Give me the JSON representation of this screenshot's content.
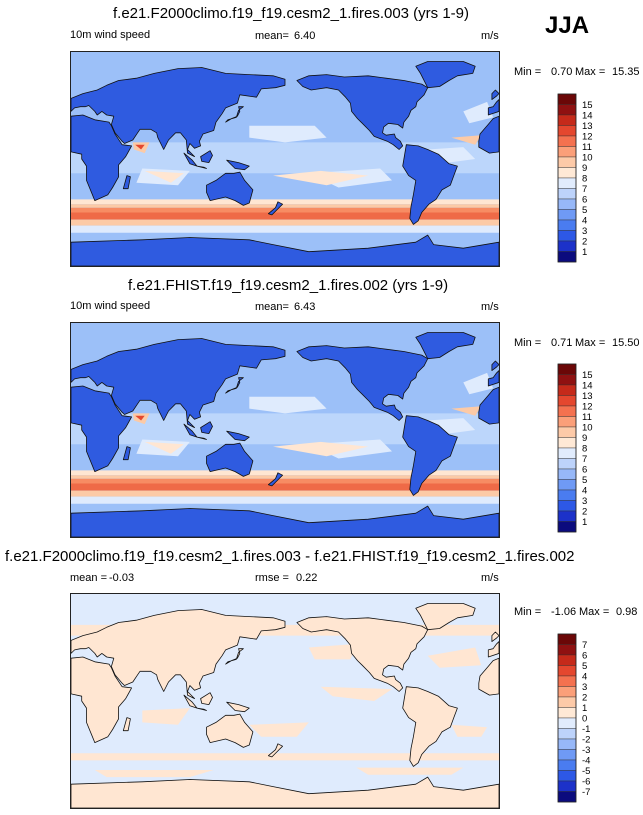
{
  "season": "JJA",
  "units": "m/s",
  "panels": [
    {
      "title": "f.e21.F2000climo.f19_f19.cesm2_1.fires.003 (yrs 1-9)",
      "variable_label": "10m wind speed",
      "stat_label": "mean=",
      "stat_value": "6.40",
      "units": "m/s",
      "min_label": "Min =",
      "min_value": "0.70",
      "max_label": "Max =",
      "max_value": "15.35"
    },
    {
      "title": "f.e21.FHIST.f19_f19.cesm2_1.fires.002 (yrs 1-9)",
      "variable_label": "10m wind speed",
      "stat_label": "mean=",
      "stat_value": "6.43",
      "units": "m/s",
      "min_label": "Min =",
      "min_value": "0.71",
      "max_label": "Max =",
      "max_value": "15.50"
    },
    {
      "title": "f.e21.F2000climo.f19_f19.cesm2_1.fires.003 - f.e21.FHIST.f19_f19.cesm2_1.fires.002",
      "mean_label": "mean =",
      "mean_value": "-0.03",
      "rmse_label": "rmse =",
      "rmse_value": "0.22",
      "units": "m/s",
      "min_label": "Min =",
      "min_value": "-1.06",
      "max_label": "Max =",
      "max_value": "0.98"
    }
  ],
  "chart_data": [
    {
      "type": "heatmap",
      "title": "f.e21.F2000climo.f19_f19.cesm2_1.fires.003 (yrs 1-9)",
      "variable": "10m wind speed",
      "units": "m/s",
      "mean": 6.4,
      "min": 0.7,
      "max": 15.35,
      "colorbar_levels": [
        1,
        2,
        3,
        4,
        5,
        6,
        7,
        8,
        9,
        10,
        11,
        12,
        13,
        14,
        15
      ],
      "colorbar_colors": [
        "#0b0b7e",
        "#1c31c9",
        "#2d58e6",
        "#4a7cf0",
        "#6f9af5",
        "#97b8f8",
        "#bdd3fb",
        "#e1ecfd",
        "#ffe9d6",
        "#fdcaa8",
        "#fb9f79",
        "#f4714f",
        "#e4472e",
        "#c52a1a",
        "#8f1111",
        "#6b0707"
      ]
    },
    {
      "type": "heatmap",
      "title": "f.e21.FHIST.f19_f19.cesm2_1.fires.002 (yrs 1-9)",
      "variable": "10m wind speed",
      "units": "m/s",
      "mean": 6.43,
      "min": 0.71,
      "max": 15.5,
      "colorbar_levels": [
        1,
        2,
        3,
        4,
        5,
        6,
        7,
        8,
        9,
        10,
        11,
        12,
        13,
        14,
        15
      ],
      "colorbar_colors": [
        "#0b0b7e",
        "#1c31c9",
        "#2d58e6",
        "#4a7cf0",
        "#6f9af5",
        "#97b8f8",
        "#bdd3fb",
        "#e1ecfd",
        "#ffe9d6",
        "#fdcaa8",
        "#fb9f79",
        "#f4714f",
        "#e4472e",
        "#c52a1a",
        "#8f1111",
        "#6b0707"
      ]
    },
    {
      "type": "heatmap",
      "title": "f.e21.F2000climo.f19_f19.cesm2_1.fires.003 - f.e21.FHIST.f19_f19.cesm2_1.fires.002",
      "units": "m/s",
      "mean": -0.03,
      "rmse": 0.22,
      "min": -1.06,
      "max": 0.98,
      "colorbar_levels": [
        -7,
        -6,
        -5,
        -4,
        -3,
        -2,
        -1,
        0,
        1,
        2,
        3,
        4,
        5,
        6,
        7
      ],
      "colorbar_colors": [
        "#0b0b7e",
        "#1c31c9",
        "#2d58e6",
        "#4a7cf0",
        "#6f9af5",
        "#97b8f8",
        "#bdd3fb",
        "#e1ecfd",
        "#ffe9d6",
        "#fdcaa8",
        "#fb9f79",
        "#f4714f",
        "#e4472e",
        "#c52a1a",
        "#8f1111",
        "#6b0707"
      ]
    }
  ]
}
